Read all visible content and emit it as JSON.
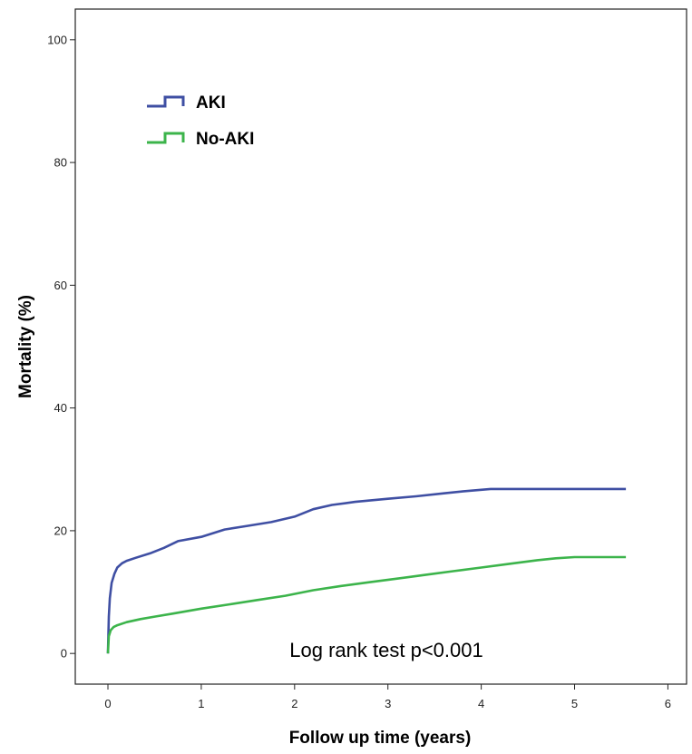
{
  "chart_data": {
    "type": "line",
    "title": "",
    "xlabel": "Follow up time (years)",
    "ylabel": "Mortality (%)",
    "xlim": [
      -0.35,
      6.2
    ],
    "ylim": [
      -5,
      105
    ],
    "xticks": [
      0,
      1,
      2,
      3,
      4,
      5,
      6
    ],
    "yticks": [
      0,
      20,
      40,
      60,
      80,
      100
    ],
    "grid": false,
    "legend_position": "top-left",
    "annotation": "Log rank test p<0.001",
    "series": [
      {
        "name": "AKI",
        "color": "#3f4fa3",
        "x": [
          0,
          0.01,
          0.02,
          0.04,
          0.07,
          0.1,
          0.15,
          0.2,
          0.3,
          0.45,
          0.6,
          0.75,
          1.0,
          1.25,
          1.5,
          1.75,
          2.0,
          2.2,
          2.4,
          2.65,
          3.0,
          3.3,
          3.6,
          3.8,
          4.1,
          4.5,
          5.0,
          5.55
        ],
        "y": [
          0,
          6,
          9,
          11.5,
          13,
          14,
          14.7,
          15.1,
          15.6,
          16.3,
          17.2,
          18.3,
          19.0,
          20.2,
          20.8,
          21.4,
          22.3,
          23.5,
          24.2,
          24.7,
          25.2,
          25.6,
          26.1,
          26.4,
          26.8,
          26.8,
          26.8,
          26.8
        ]
      },
      {
        "name": "No-AKI",
        "color": "#3cb44b",
        "x": [
          0,
          0.01,
          0.03,
          0.06,
          0.1,
          0.2,
          0.35,
          0.5,
          0.7,
          1.0,
          1.3,
          1.6,
          1.9,
          2.2,
          2.5,
          2.8,
          3.1,
          3.4,
          3.7,
          4.0,
          4.3,
          4.6,
          4.8,
          5.0,
          5.55
        ],
        "y": [
          0,
          2.8,
          3.8,
          4.3,
          4.6,
          5.1,
          5.6,
          6.0,
          6.5,
          7.3,
          8.0,
          8.7,
          9.4,
          10.3,
          11.0,
          11.6,
          12.2,
          12.8,
          13.4,
          14.0,
          14.6,
          15.2,
          15.5,
          15.7,
          15.7
        ]
      }
    ]
  }
}
